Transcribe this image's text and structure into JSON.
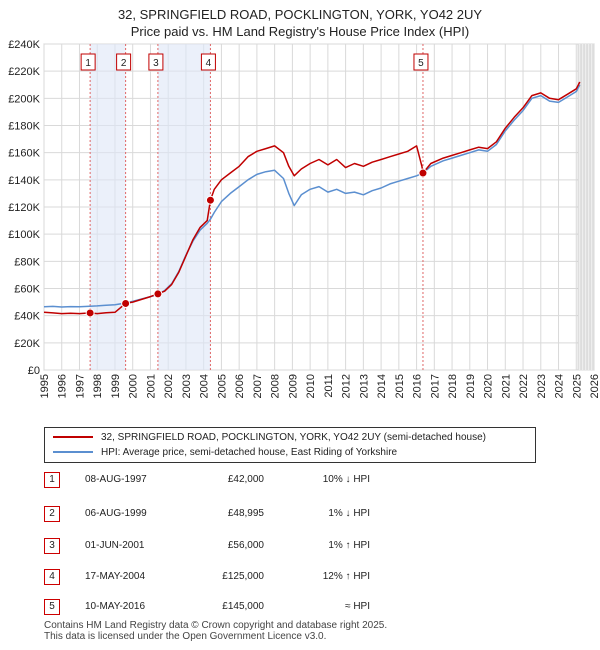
{
  "title_line1": "32, SPRINGFIELD ROAD, POCKLINGTON, YORK, YO42 2UY",
  "title_line2": "Price paid vs. HM Land Registry's House Price Index (HPI)",
  "chart_data": {
    "type": "line",
    "x_range": [
      1995,
      2026
    ],
    "y_range": [
      0,
      240000
    ],
    "y_ticks": [
      {
        "value": 0,
        "label": "£0"
      },
      {
        "value": 20000,
        "label": "£20K"
      },
      {
        "value": 40000,
        "label": "£40K"
      },
      {
        "value": 60000,
        "label": "£60K"
      },
      {
        "value": 80000,
        "label": "£80K"
      },
      {
        "value": 100000,
        "label": "£100K"
      },
      {
        "value": 120000,
        "label": "£120K"
      },
      {
        "value": 140000,
        "label": "£140K"
      },
      {
        "value": 160000,
        "label": "£160K"
      },
      {
        "value": 180000,
        "label": "£180K"
      },
      {
        "value": 200000,
        "label": "£200K"
      },
      {
        "value": 220000,
        "label": "£220K"
      },
      {
        "value": 240000,
        "label": "£240K"
      }
    ],
    "x_ticks": [
      "1995",
      "1996",
      "1997",
      "1998",
      "1999",
      "2000",
      "2001",
      "2002",
      "2003",
      "2004",
      "2005",
      "2006",
      "2007",
      "2008",
      "2009",
      "2010",
      "2011",
      "2012",
      "2013",
      "2014",
      "2015",
      "2016",
      "2017",
      "2018",
      "2019",
      "2020",
      "2021",
      "2022",
      "2023",
      "2024",
      "2025",
      "2026"
    ],
    "projection_start": 2025.1,
    "series": [
      {
        "name": "32, SPRINGFIELD ROAD, POCKLINGTON, YORK, YO42 2UY (semi-detached house)",
        "color": "#c00000",
        "points": [
          [
            1995.0,
            42500
          ],
          [
            1995.5,
            42000
          ],
          [
            1996.0,
            41500
          ],
          [
            1996.5,
            41800
          ],
          [
            1997.0,
            41500
          ],
          [
            1997.6,
            42000
          ],
          [
            1998.0,
            41500
          ],
          [
            1998.5,
            42200
          ],
          [
            1999.0,
            42500
          ],
          [
            1999.6,
            48995
          ],
          [
            2000.0,
            50000
          ],
          [
            2000.5,
            52000
          ],
          [
            2001.0,
            54000
          ],
          [
            2001.4,
            56000
          ],
          [
            2001.8,
            58000
          ],
          [
            2002.2,
            63000
          ],
          [
            2002.6,
            72000
          ],
          [
            2003.0,
            84000
          ],
          [
            2003.4,
            96000
          ],
          [
            2003.8,
            105000
          ],
          [
            2004.2,
            110000
          ],
          [
            2004.38,
            125000
          ],
          [
            2004.6,
            133000
          ],
          [
            2005.0,
            140000
          ],
          [
            2005.5,
            145000
          ],
          [
            2006.0,
            150000
          ],
          [
            2006.5,
            157000
          ],
          [
            2007.0,
            161000
          ],
          [
            2007.5,
            163000
          ],
          [
            2008.0,
            165000
          ],
          [
            2008.5,
            160000
          ],
          [
            2008.8,
            150000
          ],
          [
            2009.1,
            143000
          ],
          [
            2009.5,
            148000
          ],
          [
            2010.0,
            152000
          ],
          [
            2010.5,
            155000
          ],
          [
            2011.0,
            151000
          ],
          [
            2011.5,
            155000
          ],
          [
            2012.0,
            149000
          ],
          [
            2012.5,
            152000
          ],
          [
            2013.0,
            150000
          ],
          [
            2013.5,
            153000
          ],
          [
            2014.0,
            155000
          ],
          [
            2014.5,
            157000
          ],
          [
            2015.0,
            159000
          ],
          [
            2015.5,
            161000
          ],
          [
            2016.0,
            165000
          ],
          [
            2016.3,
            150000
          ],
          [
            2016.36,
            145000
          ],
          [
            2016.8,
            152000
          ],
          [
            2017.5,
            156000
          ],
          [
            2018.0,
            158000
          ],
          [
            2018.5,
            160000
          ],
          [
            2019.0,
            162000
          ],
          [
            2019.5,
            164000
          ],
          [
            2020.0,
            163000
          ],
          [
            2020.5,
            168000
          ],
          [
            2021.0,
            178000
          ],
          [
            2021.5,
            186000
          ],
          [
            2022.0,
            193000
          ],
          [
            2022.5,
            202000
          ],
          [
            2023.0,
            204000
          ],
          [
            2023.5,
            200000
          ],
          [
            2024.0,
            199000
          ],
          [
            2024.5,
            203000
          ],
          [
            2025.0,
            207000
          ],
          [
            2025.2,
            212000
          ]
        ]
      },
      {
        "name": "HPI: Average price, semi-detached house, East Riding of Yorkshire",
        "color": "#5b8fd0",
        "points": [
          [
            1995.0,
            46500
          ],
          [
            1995.5,
            46800
          ],
          [
            1996.0,
            46400
          ],
          [
            1996.5,
            46700
          ],
          [
            1997.0,
            46500
          ],
          [
            1997.6,
            47000
          ],
          [
            1998.0,
            47200
          ],
          [
            1998.5,
            47600
          ],
          [
            1999.0,
            48000
          ],
          [
            1999.6,
            49300
          ],
          [
            2000.0,
            50500
          ],
          [
            2000.5,
            52300
          ],
          [
            2001.0,
            54000
          ],
          [
            2001.4,
            55500
          ],
          [
            2001.8,
            58500
          ],
          [
            2002.2,
            63500
          ],
          [
            2002.6,
            72500
          ],
          [
            2003.0,
            84500
          ],
          [
            2003.4,
            95000
          ],
          [
            2003.8,
            103000
          ],
          [
            2004.2,
            108000
          ],
          [
            2004.38,
            111000
          ],
          [
            2004.6,
            116000
          ],
          [
            2005.0,
            124000
          ],
          [
            2005.5,
            130000
          ],
          [
            2006.0,
            135000
          ],
          [
            2006.5,
            140000
          ],
          [
            2007.0,
            144000
          ],
          [
            2007.5,
            146000
          ],
          [
            2008.0,
            147000
          ],
          [
            2008.5,
            141000
          ],
          [
            2008.8,
            130000
          ],
          [
            2009.1,
            121000
          ],
          [
            2009.5,
            129000
          ],
          [
            2010.0,
            133000
          ],
          [
            2010.5,
            135000
          ],
          [
            2011.0,
            131000
          ],
          [
            2011.5,
            133000
          ],
          [
            2012.0,
            130000
          ],
          [
            2012.5,
            131000
          ],
          [
            2013.0,
            129000
          ],
          [
            2013.5,
            132000
          ],
          [
            2014.0,
            134000
          ],
          [
            2014.5,
            137000
          ],
          [
            2015.0,
            139000
          ],
          [
            2015.5,
            141000
          ],
          [
            2016.0,
            143000
          ],
          [
            2016.36,
            145000
          ],
          [
            2016.8,
            150000
          ],
          [
            2017.5,
            154000
          ],
          [
            2018.0,
            156000
          ],
          [
            2018.5,
            158000
          ],
          [
            2019.0,
            160000
          ],
          [
            2019.5,
            162000
          ],
          [
            2020.0,
            161000
          ],
          [
            2020.5,
            166000
          ],
          [
            2021.0,
            176000
          ],
          [
            2021.5,
            184000
          ],
          [
            2022.0,
            191000
          ],
          [
            2022.5,
            200000
          ],
          [
            2023.0,
            202000
          ],
          [
            2023.5,
            198000
          ],
          [
            2024.0,
            197000
          ],
          [
            2024.5,
            201000
          ],
          [
            2025.0,
            205000
          ],
          [
            2025.2,
            210000
          ]
        ]
      }
    ],
    "sales": [
      {
        "id": "1",
        "year": 1997.6,
        "price": 42000
      },
      {
        "id": "2",
        "year": 1999.6,
        "price": 48995
      },
      {
        "id": "3",
        "year": 2001.42,
        "price": 56000
      },
      {
        "id": "4",
        "year": 2004.38,
        "price": 125000
      },
      {
        "id": "5",
        "year": 2016.36,
        "price": 145000
      }
    ]
  },
  "legend": {
    "property_label": "32, SPRINGFIELD ROAD, POCKLINGTON, YORK, YO42 2UY (semi-detached house)",
    "hpi_label": "HPI: Average price, semi-detached house, East Riding of Yorkshire",
    "property_color": "#c00000",
    "hpi_color": "#5b8fd0"
  },
  "sales_table": [
    {
      "num": "1",
      "date": "08-AUG-1997",
      "price": "£42,000",
      "hpi": "10% ↓ HPI"
    },
    {
      "num": "2",
      "date": "06-AUG-1999",
      "price": "£48,995",
      "hpi": "1% ↓ HPI"
    },
    {
      "num": "3",
      "date": "01-JUN-2001",
      "price": "£56,000",
      "hpi": "1% ↑ HPI"
    },
    {
      "num": "4",
      "date": "17-MAY-2004",
      "price": "£125,000",
      "hpi": "12% ↑ HPI"
    },
    {
      "num": "5",
      "date": "10-MAY-2016",
      "price": "£145,000",
      "hpi": "≈ HPI"
    }
  ],
  "footer_line1": "Contains HM Land Registry data © Crown copyright and database right 2025.",
  "footer_line2": "This data is licensed under the Open Government Licence v3.0."
}
